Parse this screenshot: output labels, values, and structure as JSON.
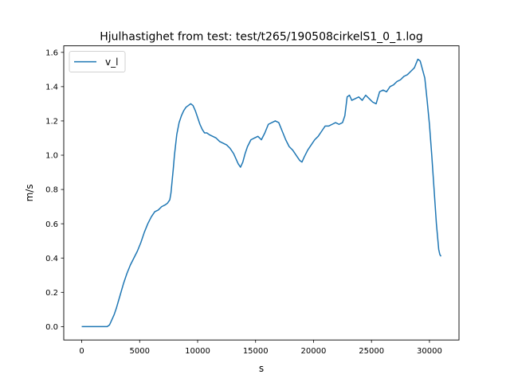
{
  "chart_data": {
    "type": "line",
    "title": "Hjulhastighet from test: test/t265/190508cirkelS1_0_1.log",
    "xlabel": "s",
    "ylabel": "m/s",
    "xlim": [
      -1550,
      32550
    ],
    "ylim": [
      -0.078,
      1.638
    ],
    "xticks": [
      0,
      5000,
      10000,
      15000,
      20000,
      25000,
      30000
    ],
    "xtick_labels": [
      "0",
      "5000",
      "10000",
      "15000",
      "20000",
      "25000",
      "30000"
    ],
    "yticks": [
      0.0,
      0.2,
      0.4,
      0.6,
      0.8,
      1.0,
      1.2,
      1.4,
      1.6
    ],
    "ytick_labels": [
      "0.0",
      "0.2",
      "0.4",
      "0.6",
      "0.8",
      "1.0",
      "1.2",
      "1.4",
      "1.6"
    ],
    "grid": false,
    "legend": "top-left",
    "colors": {
      "series": "#1f77b4",
      "axes": "#000000",
      "background": "#ffffff"
    },
    "series": [
      {
        "name": "v_l",
        "x": [
          0,
          500,
          1000,
          1500,
          2000,
          2100,
          2200,
          2400,
          2600,
          2800,
          3000,
          3300,
          3600,
          3900,
          4200,
          4500,
          4800,
          5100,
          5400,
          5700,
          6000,
          6300,
          6600,
          6900,
          7200,
          7400,
          7600,
          7700,
          7800,
          7900,
          8000,
          8200,
          8400,
          8600,
          8800,
          9000,
          9200,
          9400,
          9600,
          9800,
          10000,
          10200,
          10400,
          10600,
          10800,
          11000,
          11300,
          11600,
          11900,
          12200,
          12500,
          12800,
          13100,
          13300,
          13500,
          13700,
          13900,
          14100,
          14300,
          14600,
          14900,
          15200,
          15500,
          15800,
          16100,
          16400,
          16700,
          17000,
          17300,
          17600,
          17900,
          18200,
          18500,
          18800,
          19000,
          19200,
          19500,
          19800,
          20100,
          20400,
          20700,
          21000,
          21300,
          21600,
          21900,
          22200,
          22500,
          22700,
          22900,
          23100,
          23300,
          23600,
          23900,
          24200,
          24500,
          24800,
          25100,
          25400,
          25700,
          26000,
          26300,
          26600,
          26900,
          27200,
          27500,
          27800,
          28100,
          28400,
          28700,
          29000,
          29200,
          29400,
          29600,
          29800,
          30000,
          30200,
          30400,
          30600,
          30800,
          30900,
          31000
        ],
        "y": [
          0.0,
          0.0,
          0.0,
          0.0,
          0.0,
          0.0,
          0.0,
          0.01,
          0.04,
          0.07,
          0.11,
          0.18,
          0.25,
          0.31,
          0.36,
          0.4,
          0.44,
          0.49,
          0.55,
          0.6,
          0.64,
          0.67,
          0.68,
          0.7,
          0.71,
          0.72,
          0.74,
          0.78,
          0.85,
          0.92,
          1.0,
          1.12,
          1.19,
          1.23,
          1.26,
          1.28,
          1.29,
          1.3,
          1.29,
          1.26,
          1.22,
          1.18,
          1.15,
          1.13,
          1.13,
          1.12,
          1.11,
          1.1,
          1.08,
          1.07,
          1.06,
          1.04,
          1.01,
          0.98,
          0.95,
          0.93,
          0.96,
          1.01,
          1.05,
          1.09,
          1.1,
          1.11,
          1.09,
          1.13,
          1.18,
          1.19,
          1.2,
          1.19,
          1.14,
          1.09,
          1.05,
          1.03,
          1.0,
          0.97,
          0.96,
          0.99,
          1.03,
          1.06,
          1.09,
          1.11,
          1.14,
          1.17,
          1.17,
          1.18,
          1.19,
          1.18,
          1.19,
          1.23,
          1.34,
          1.35,
          1.32,
          1.33,
          1.34,
          1.32,
          1.35,
          1.33,
          1.31,
          1.3,
          1.37,
          1.38,
          1.37,
          1.4,
          1.41,
          1.43,
          1.44,
          1.46,
          1.47,
          1.49,
          1.51,
          1.56,
          1.55,
          1.5,
          1.45,
          1.32,
          1.18,
          1.0,
          0.8,
          0.6,
          0.45,
          0.42,
          0.41
        ]
      }
    ]
  }
}
